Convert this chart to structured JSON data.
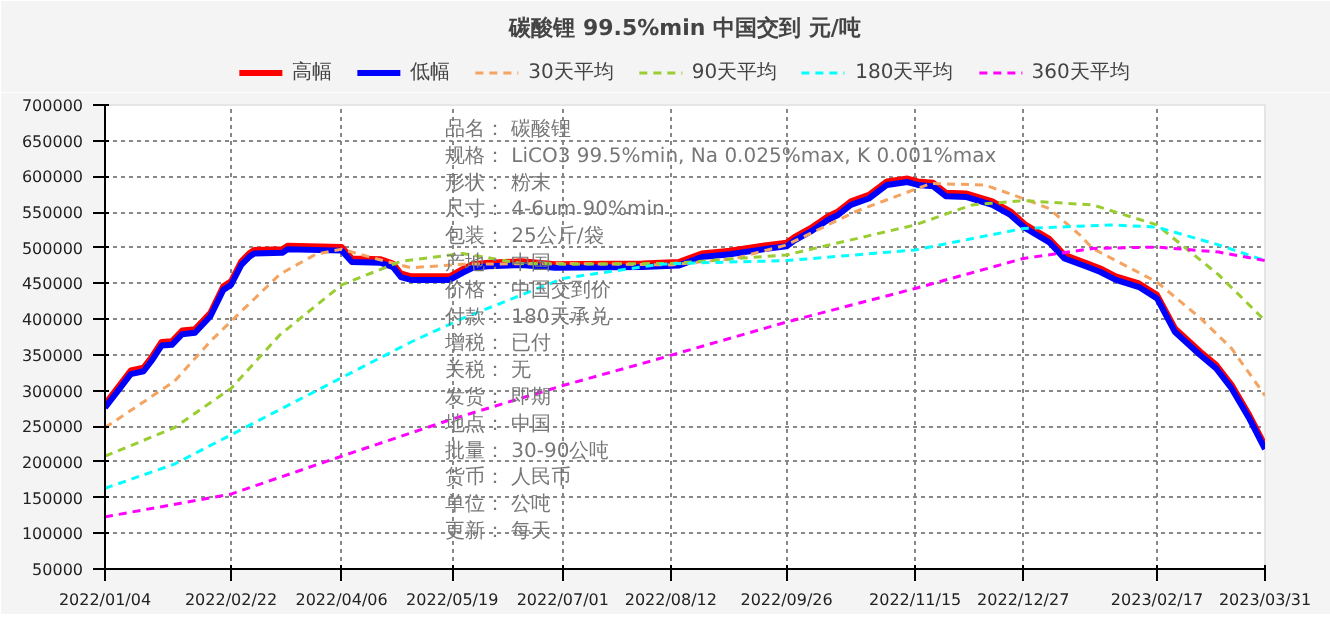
{
  "chart_data": {
    "type": "line",
    "title": "碳酸锂 99.5%min 中国交到 元/吨",
    "xlim": [
      "2022-01-04",
      "2023-03-31"
    ],
    "xticks": [
      {
        "value": "2022-01-04",
        "label": "2022/01/04"
      },
      {
        "value": "2022-02-22",
        "label": "2022/02/22"
      },
      {
        "value": "2022-04-06",
        "label": "2022/04/06"
      },
      {
        "value": "2022-05-19",
        "label": "2022/05/19"
      },
      {
        "value": "2022-07-01",
        "label": "2022/07/01"
      },
      {
        "value": "2022-08-12",
        "label": "2022/08/12"
      },
      {
        "value": "2022-09-26",
        "label": "2022/09/26"
      },
      {
        "value": "2022-11-15",
        "label": "2022/11/15"
      },
      {
        "value": "2022-12-27",
        "label": "2022/12/27"
      },
      {
        "value": "2023-02-17",
        "label": "2023/02/17"
      },
      {
        "value": "2023-03-31",
        "label": "2023/03/31"
      }
    ],
    "ylim": [
      50000,
      700000
    ],
    "yticks": [
      50000,
      100000,
      150000,
      200000,
      250000,
      300000,
      350000,
      400000,
      450000,
      500000,
      550000,
      600000,
      650000,
      700000
    ],
    "grid": true,
    "legend": "top",
    "marker": "none",
    "series": [
      {
        "name": "高幅",
        "color": "#ff0000",
        "line_style": "solid",
        "x": [
          "2022-01-04",
          "2022-01-10",
          "2022-01-14",
          "2022-01-19",
          "2022-01-22",
          "2022-01-26",
          "2022-01-30",
          "2022-02-03",
          "2022-02-08",
          "2022-02-14",
          "2022-02-19",
          "2022-02-22",
          "2022-02-26",
          "2022-03-01",
          "2022-03-03",
          "2022-03-14",
          "2022-03-16",
          "2022-04-06",
          "2022-04-10",
          "2022-04-21",
          "2022-04-26",
          "2022-04-29",
          "2022-05-03",
          "2022-05-18",
          "2022-05-23",
          "2022-05-27",
          "2022-06-02",
          "2022-06-15",
          "2022-06-28",
          "2022-08-01",
          "2022-08-15",
          "2022-08-24",
          "2022-09-04",
          "2022-09-19",
          "2022-09-26",
          "2022-09-29",
          "2022-10-06",
          "2022-10-12",
          "2022-10-16",
          "2022-10-21",
          "2022-10-28",
          "2022-11-04",
          "2022-11-12",
          "2022-11-16",
          "2022-11-22",
          "2022-11-27",
          "2022-12-05",
          "2022-12-15",
          "2022-12-22",
          "2022-12-28",
          "2023-01-06",
          "2023-01-12",
          "2023-01-21",
          "2023-01-26",
          "2023-02-01",
          "2023-02-10",
          "2023-02-17",
          "2023-02-24",
          "2023-03-06",
          "2023-03-12",
          "2023-03-18",
          "2023-03-25",
          "2023-03-31"
        ],
        "values": [
          281000,
          309000,
          328000,
          332000,
          346000,
          368000,
          369000,
          384000,
          386000,
          409000,
          446000,
          453000,
          481000,
          492000,
          497000,
          498000,
          503000,
          501000,
          485000,
          484000,
          478000,
          464000,
          460000,
          460000,
          470000,
          477000,
          479000,
          481000,
          477000,
          478000,
          480000,
          492000,
          496000,
          504000,
          507000,
          515000,
          529000,
          544000,
          551000,
          565000,
          574000,
          593000,
          597000,
          593000,
          591000,
          577000,
          576000,
          565000,
          551000,
          532000,
          513000,
          490000,
          478000,
          471000,
          460000,
          450000,
          434000,
          387000,
          354000,
          336000,
          308000,
          265000,
          223000
        ]
      },
      {
        "name": "低幅",
        "color": "#0000ff",
        "line_style": "solid",
        "x": [
          "2022-01-04",
          "2022-01-10",
          "2022-01-14",
          "2022-01-19",
          "2022-01-22",
          "2022-01-26",
          "2022-01-30",
          "2022-02-03",
          "2022-02-08",
          "2022-02-14",
          "2022-02-19",
          "2022-02-22",
          "2022-02-26",
          "2022-03-01",
          "2022-03-03",
          "2022-03-14",
          "2022-03-16",
          "2022-04-06",
          "2022-04-10",
          "2022-04-21",
          "2022-04-26",
          "2022-04-29",
          "2022-05-03",
          "2022-05-18",
          "2022-05-23",
          "2022-05-27",
          "2022-06-02",
          "2022-06-15",
          "2022-06-28",
          "2022-08-01",
          "2022-08-15",
          "2022-08-24",
          "2022-09-04",
          "2022-09-19",
          "2022-09-26",
          "2022-09-29",
          "2022-10-06",
          "2022-10-12",
          "2022-10-16",
          "2022-10-21",
          "2022-10-28",
          "2022-11-04",
          "2022-11-12",
          "2022-11-16",
          "2022-11-22",
          "2022-11-27",
          "2022-12-05",
          "2022-12-15",
          "2022-12-22",
          "2022-12-28",
          "2023-01-06",
          "2023-01-12",
          "2023-01-21",
          "2023-01-26",
          "2023-02-01",
          "2023-02-10",
          "2023-02-17",
          "2023-02-24",
          "2023-03-06",
          "2023-03-12",
          "2023-03-18",
          "2023-03-25",
          "2023-03-31"
        ],
        "values": [
          276000,
          304000,
          323000,
          327000,
          341000,
          363000,
          364000,
          379000,
          381000,
          404000,
          441000,
          448000,
          476000,
          487000,
          492000,
          493000,
          498000,
          496000,
          480000,
          479000,
          473000,
          459000,
          455000,
          455000,
          465000,
          472000,
          474000,
          476000,
          472000,
          473000,
          475000,
          487000,
          491000,
          499000,
          502000,
          510000,
          524000,
          539000,
          546000,
          560000,
          569000,
          588000,
          592000,
          588000,
          586000,
          572000,
          571000,
          560000,
          546000,
          527000,
          508000,
          485000,
          473000,
          466000,
          455000,
          445000,
          429000,
          382000,
          349000,
          331000,
          303000,
          260000,
          218000
        ]
      },
      {
        "name": "30天平均",
        "color": "#f4a460",
        "line_style": "dashed",
        "x": [
          "2022-01-04",
          "2022-01-31",
          "2022-02-14",
          "2022-02-22",
          "2022-03-13",
          "2022-03-27",
          "2022-04-06",
          "2022-04-18",
          "2022-05-03",
          "2022-05-23",
          "2022-07-01",
          "2022-08-12",
          "2022-09-06",
          "2022-09-26",
          "2022-10-23",
          "2022-11-21",
          "2022-12-12",
          "2022-12-27",
          "2023-01-06",
          "2023-01-18",
          "2023-01-23",
          "2023-02-17",
          "2023-03-06",
          "2023-03-18",
          "2023-03-31"
        ],
        "values": [
          248000,
          313000,
          369000,
          397000,
          463000,
          491000,
          498000,
          486000,
          472000,
          477000,
          478000,
          476000,
          485000,
          504000,
          551000,
          590000,
          588000,
          569000,
          555000,
          518000,
          499000,
          452000,
          401000,
          359000,
          293000
        ]
      },
      {
        "name": "90天平均",
        "color": "#9acd32",
        "line_style": "dashed",
        "x": [
          "2022-01-04",
          "2022-01-31",
          "2022-02-22",
          "2022-03-13",
          "2022-04-06",
          "2022-04-29",
          "2022-05-23",
          "2022-06-15",
          "2022-07-01",
          "2022-08-12",
          "2022-09-26",
          "2022-11-15",
          "2022-12-07",
          "2022-12-27",
          "2023-01-23",
          "2023-02-17",
          "2023-03-13",
          "2023-03-31"
        ],
        "values": [
          208000,
          248000,
          303000,
          378000,
          448000,
          481000,
          492000,
          478000,
          477000,
          478000,
          490000,
          532000,
          560000,
          566000,
          560000,
          532000,
          462000,
          398000
        ]
      },
      {
        "name": "180天平均",
        "color": "#00ffff",
        "line_style": "dashed",
        "x": [
          "2022-01-04",
          "2022-01-31",
          "2022-02-22",
          "2022-04-06",
          "2022-05-03",
          "2022-05-23",
          "2022-07-01",
          "2022-08-08",
          "2022-08-24",
          "2022-09-26",
          "2022-11-15",
          "2022-12-27",
          "2023-01-30",
          "2023-02-17",
          "2023-03-13",
          "2023-03-31"
        ],
        "values": [
          163000,
          197000,
          238000,
          318000,
          368000,
          401000,
          457000,
          477000,
          479000,
          482000,
          497000,
          527000,
          532000,
          529000,
          504000,
          482000
        ]
      },
      {
        "name": "360天平均",
        "color": "#ff00ff",
        "line_style": "dashed",
        "x": [
          "2022-01-04",
          "2022-02-22",
          "2022-04-06",
          "2022-05-19",
          "2022-07-01",
          "2022-08-01",
          "2022-09-26",
          "2022-11-15",
          "2022-12-27",
          "2023-01-23",
          "2023-02-17",
          "2023-03-13",
          "2023-03-31"
        ],
        "values": [
          123000,
          155000,
          208000,
          260000,
          307000,
          338000,
          396000,
          443000,
          485000,
          499000,
          501000,
          494000,
          482000
        ]
      }
    ],
    "annotations": [
      "品名：  碳酸锂",
      "规格：  LiCO3 99.5%min, Na 0.025%max, K 0.001%max",
      "形状：  粉末",
      "尺寸：  4-6um 90%min",
      "包装：  25公斤/袋",
      "产地：  中国",
      "价格：  中国交到价",
      "付款：  180天承兑",
      "增税：  已付",
      "关税：  无",
      "发货：  即期",
      "地点：  中国",
      "批量：  30-90公吨",
      "货币：  人民币",
      "单位：  公吨",
      "更新：  每天"
    ]
  }
}
